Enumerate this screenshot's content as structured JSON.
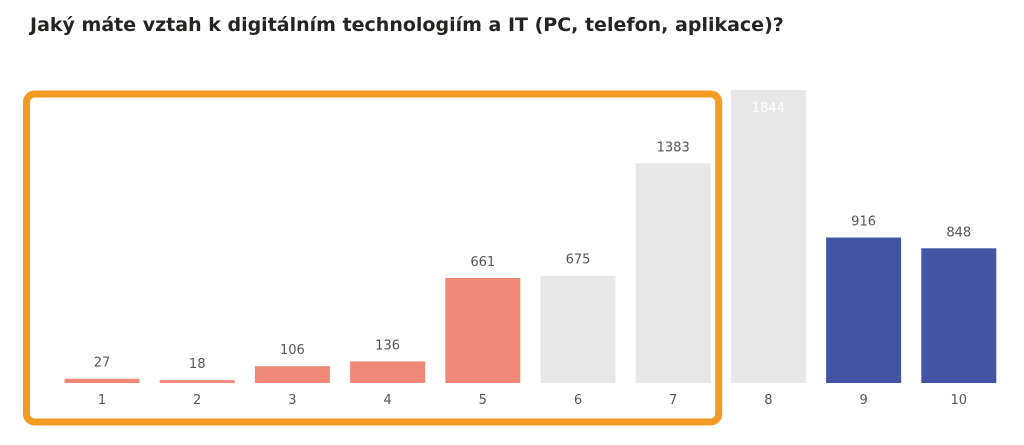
{
  "chart_data": {
    "type": "bar",
    "title": "Jaký máte vztah k digitálním technologiím a IT (PC, telefon, aplikace)?",
    "xlabel": "",
    "ylabel": "",
    "categories": [
      "1",
      "2",
      "3",
      "4",
      "5",
      "6",
      "7",
      "8",
      "9",
      "10"
    ],
    "values": [
      27,
      18,
      106,
      136,
      661,
      675,
      1383,
      1844,
      916,
      848
    ],
    "ylim": [
      0,
      1844
    ],
    "grid": false,
    "legend": "none",
    "bar_colors": [
      "#f08878",
      "#f08878",
      "#f08878",
      "#f08878",
      "#f08878",
      "#e6e7e6",
      "#e6e7e6",
      "#e6e7e6",
      "#4354a5",
      "#4354a5"
    ],
    "highlight": {
      "color": "#f29a22",
      "categories": [
        "1",
        "2",
        "3",
        "4",
        "5",
        "6",
        "7"
      ]
    }
  }
}
